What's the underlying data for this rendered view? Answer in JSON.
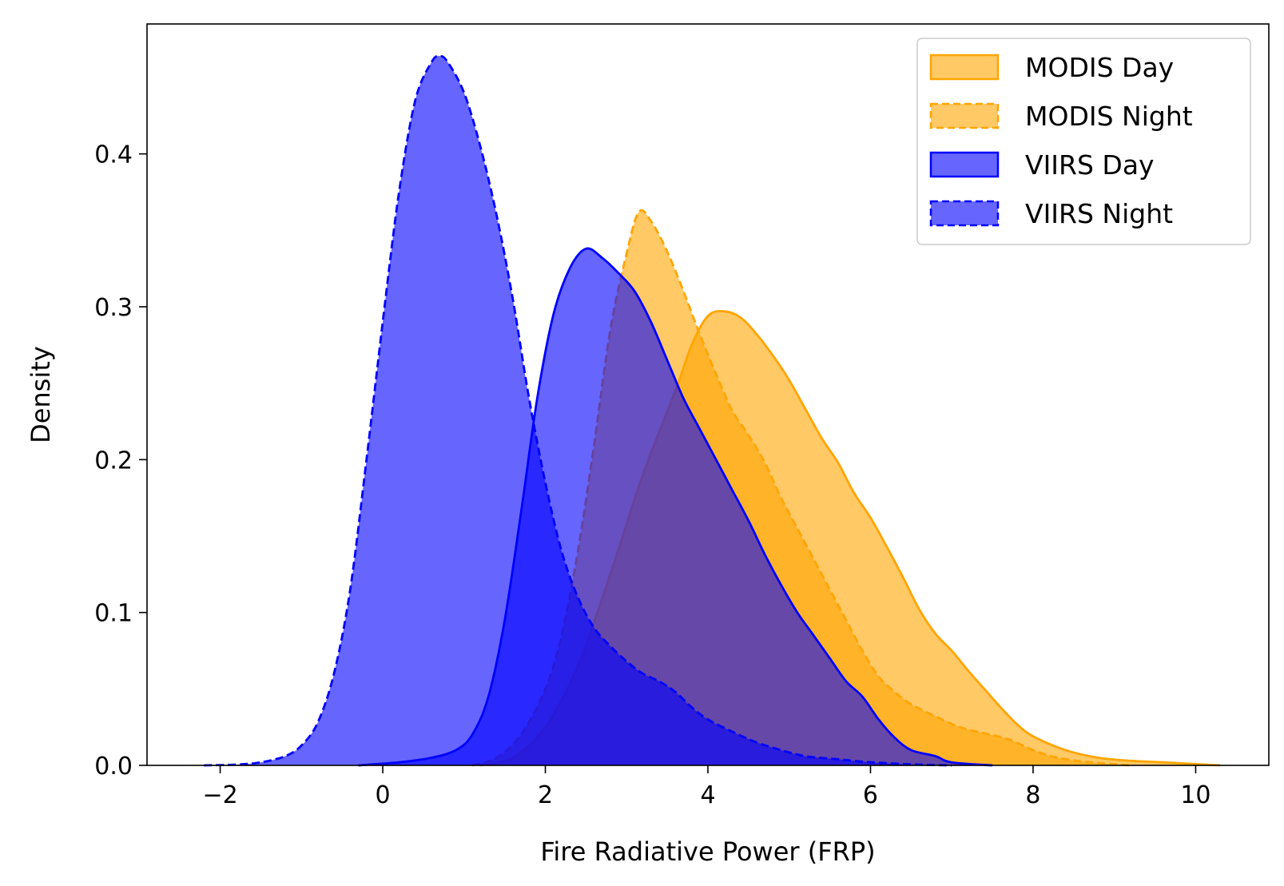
{
  "chart_data": {
    "type": "area",
    "title": "",
    "xlabel": "Fire Radiative Power (FRP)",
    "ylabel": "Density",
    "xlim": [
      -2.9,
      10.9
    ],
    "ylim": [
      0,
      0.485
    ],
    "xticks": [
      -2,
      0,
      2,
      4,
      6,
      8,
      10
    ],
    "xtick_labels": [
      "−2",
      "0",
      "2",
      "4",
      "6",
      "8",
      "10"
    ],
    "yticks": [
      0.0,
      0.1,
      0.2,
      0.3,
      0.4
    ],
    "ytick_labels": [
      "0.0",
      "0.1",
      "0.2",
      "0.3",
      "0.4"
    ],
    "grid": false,
    "legend_position": "top-right",
    "series": [
      {
        "name": "MODIS Day",
        "color": "#FFA500",
        "linestyle": "solid",
        "fill_opacity": 0.6,
        "points": [
          [
            1.2,
            0
          ],
          [
            1.6,
            0.005
          ],
          [
            2.0,
            0.025
          ],
          [
            2.4,
            0.065
          ],
          [
            2.8,
            0.125
          ],
          [
            3.2,
            0.19
          ],
          [
            3.6,
            0.245
          ],
          [
            3.8,
            0.275
          ],
          [
            4.0,
            0.294
          ],
          [
            4.2,
            0.297
          ],
          [
            4.4,
            0.293
          ],
          [
            4.6,
            0.282
          ],
          [
            4.8,
            0.268
          ],
          [
            5.0,
            0.252
          ],
          [
            5.2,
            0.233
          ],
          [
            5.4,
            0.214
          ],
          [
            5.6,
            0.198
          ],
          [
            5.8,
            0.178
          ],
          [
            6.0,
            0.162
          ],
          [
            6.2,
            0.143
          ],
          [
            6.4,
            0.123
          ],
          [
            6.6,
            0.102
          ],
          [
            6.8,
            0.086
          ],
          [
            7.0,
            0.075
          ],
          [
            7.2,
            0.062
          ],
          [
            7.4,
            0.05
          ],
          [
            7.6,
            0.038
          ],
          [
            7.8,
            0.027
          ],
          [
            8.0,
            0.019
          ],
          [
            8.4,
            0.01
          ],
          [
            8.8,
            0.005
          ],
          [
            9.2,
            0.003
          ],
          [
            9.6,
            0.002
          ],
          [
            10.3,
            0
          ]
        ]
      },
      {
        "name": "MODIS Night",
        "color": "#FFA500",
        "linestyle": "dashed",
        "fill_opacity": 0.6,
        "points": [
          [
            1.1,
            0
          ],
          [
            1.4,
            0.005
          ],
          [
            1.7,
            0.02
          ],
          [
            2.0,
            0.05
          ],
          [
            2.2,
            0.085
          ],
          [
            2.4,
            0.14
          ],
          [
            2.6,
            0.21
          ],
          [
            2.8,
            0.285
          ],
          [
            3.0,
            0.335
          ],
          [
            3.15,
            0.362
          ],
          [
            3.3,
            0.356
          ],
          [
            3.5,
            0.336
          ],
          [
            3.7,
            0.31
          ],
          [
            3.9,
            0.282
          ],
          [
            4.1,
            0.256
          ],
          [
            4.3,
            0.232
          ],
          [
            4.5,
            0.216
          ],
          [
            4.7,
            0.198
          ],
          [
            4.9,
            0.175
          ],
          [
            5.1,
            0.155
          ],
          [
            5.3,
            0.135
          ],
          [
            5.5,
            0.115
          ],
          [
            5.7,
            0.095
          ],
          [
            5.9,
            0.075
          ],
          [
            6.1,
            0.058
          ],
          [
            6.3,
            0.048
          ],
          [
            6.5,
            0.04
          ],
          [
            6.8,
            0.032
          ],
          [
            7.1,
            0.025
          ],
          [
            7.4,
            0.021
          ],
          [
            7.7,
            0.017
          ],
          [
            8.0,
            0.01
          ],
          [
            8.3,
            0.005
          ],
          [
            8.7,
            0.002
          ],
          [
            9.2,
            0
          ]
        ]
      },
      {
        "name": "VIIRS Day",
        "color": "#0000FF",
        "linestyle": "solid",
        "fill_opacity": 0.6,
        "points": [
          [
            -0.3,
            0
          ],
          [
            0.2,
            0.002
          ],
          [
            0.6,
            0.005
          ],
          [
            0.9,
            0.01
          ],
          [
            1.1,
            0.02
          ],
          [
            1.3,
            0.045
          ],
          [
            1.5,
            0.095
          ],
          [
            1.7,
            0.165
          ],
          [
            1.9,
            0.24
          ],
          [
            2.1,
            0.295
          ],
          [
            2.3,
            0.325
          ],
          [
            2.5,
            0.338
          ],
          [
            2.7,
            0.332
          ],
          [
            2.9,
            0.322
          ],
          [
            3.1,
            0.31
          ],
          [
            3.3,
            0.29
          ],
          [
            3.5,
            0.265
          ],
          [
            3.7,
            0.24
          ],
          [
            3.9,
            0.22
          ],
          [
            4.1,
            0.2
          ],
          [
            4.3,
            0.18
          ],
          [
            4.5,
            0.16
          ],
          [
            4.7,
            0.138
          ],
          [
            4.9,
            0.118
          ],
          [
            5.1,
            0.1
          ],
          [
            5.3,
            0.085
          ],
          [
            5.5,
            0.07
          ],
          [
            5.7,
            0.055
          ],
          [
            5.9,
            0.045
          ],
          [
            6.1,
            0.03
          ],
          [
            6.3,
            0.018
          ],
          [
            6.5,
            0.01
          ],
          [
            6.8,
            0.006
          ],
          [
            7.0,
            0.002
          ],
          [
            7.5,
            0
          ]
        ]
      },
      {
        "name": "VIIRS Night",
        "color": "#0000FF",
        "linestyle": "dashed",
        "fill_opacity": 0.6,
        "points": [
          [
            -2.2,
            0
          ],
          [
            -1.8,
            0.0005
          ],
          [
            -1.5,
            0.002
          ],
          [
            -1.2,
            0.006
          ],
          [
            -1.0,
            0.013
          ],
          [
            -0.8,
            0.028
          ],
          [
            -0.6,
            0.06
          ],
          [
            -0.4,
            0.115
          ],
          [
            -0.2,
            0.2
          ],
          [
            0.0,
            0.29
          ],
          [
            0.2,
            0.375
          ],
          [
            0.4,
            0.435
          ],
          [
            0.6,
            0.46
          ],
          [
            0.7,
            0.464
          ],
          [
            0.8,
            0.46
          ],
          [
            1.0,
            0.44
          ],
          [
            1.2,
            0.405
          ],
          [
            1.4,
            0.36
          ],
          [
            1.6,
            0.305
          ],
          [
            1.8,
            0.24
          ],
          [
            2.0,
            0.185
          ],
          [
            2.2,
            0.14
          ],
          [
            2.4,
            0.11
          ],
          [
            2.6,
            0.09
          ],
          [
            2.8,
            0.078
          ],
          [
            3.0,
            0.068
          ],
          [
            3.2,
            0.06
          ],
          [
            3.4,
            0.055
          ],
          [
            3.6,
            0.048
          ],
          [
            3.8,
            0.038
          ],
          [
            4.0,
            0.03
          ],
          [
            4.3,
            0.022
          ],
          [
            4.6,
            0.015
          ],
          [
            4.9,
            0.01
          ],
          [
            5.2,
            0.006
          ],
          [
            5.6,
            0.004
          ],
          [
            6.0,
            0.002
          ],
          [
            6.6,
            0.0005
          ],
          [
            7.0,
            0
          ]
        ]
      }
    ]
  }
}
